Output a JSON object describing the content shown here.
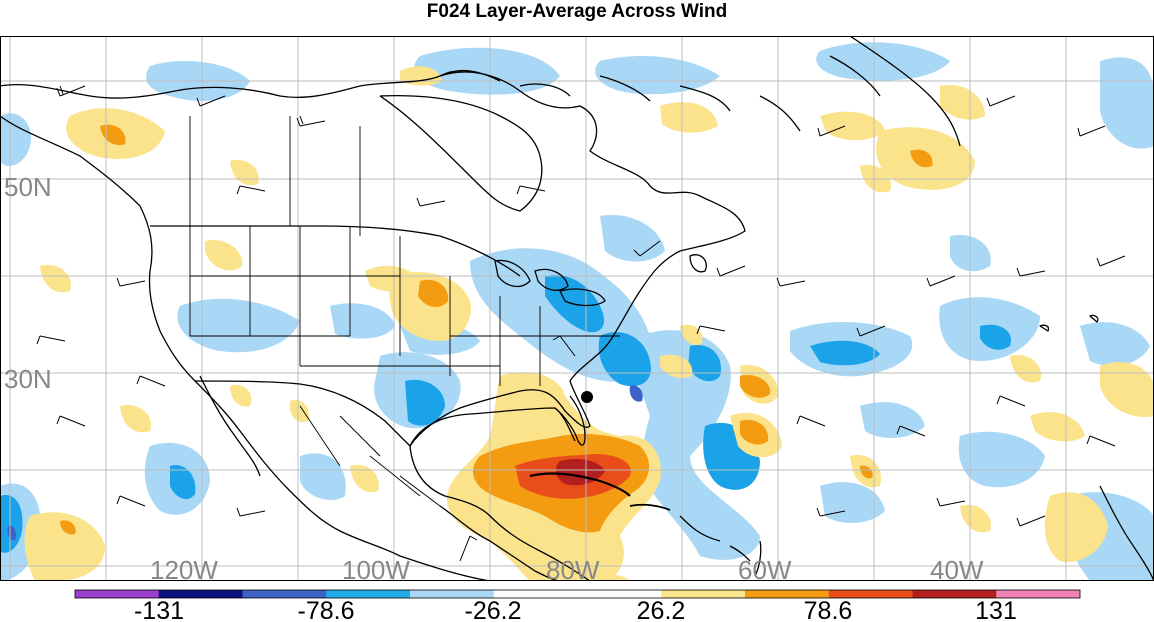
{
  "title": "F024 Layer-Average Across Wind",
  "lat_labels": [
    "50N",
    "30N"
  ],
  "lon_labels": [
    "120W",
    "100W",
    "80W",
    "60W",
    "40W"
  ],
  "colorbar": {
    "tick_labels": [
      "-131",
      "-78.6",
      "-26.2",
      "26.2",
      "78.6",
      "131"
    ],
    "colors": [
      "#9b3fd0",
      "#0a137f",
      "#3d62c8",
      "#1faeea",
      "#a8d8f5",
      "#ffffff",
      "#ffffff",
      "#fbe58c",
      "#f39c12",
      "#ea4c1a",
      "#b31f1f",
      "#f082b4"
    ]
  },
  "colors": {
    "light_blue": "#a9d8f6",
    "mid_blue": "#1aa3e8",
    "dark_blue": "#1a3b9e",
    "light_yellow": "#fbe38b",
    "orange": "#f39c12",
    "red_orange": "#e94d19",
    "dark_red": "#b11f1f",
    "marker": "#000000"
  }
}
